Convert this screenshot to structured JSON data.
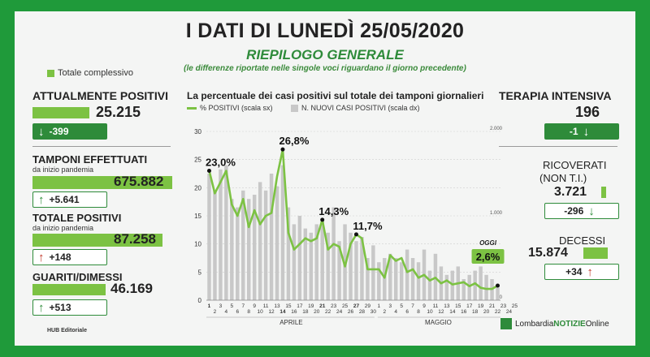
{
  "header": {
    "title": "I DATI DI LUNEDÌ 25/05/2020",
    "subtitle": "RIEPILOGO GENERALE",
    "note": "(le differenze riportate nelle singole voci riguardano il giorno precedente)"
  },
  "legend_total": "Totale complessivo",
  "left": {
    "positivi": {
      "label": "ATTUALMENTE POSITIVI",
      "value": "25.215",
      "delta": "-399"
    },
    "tamponi": {
      "label": "TAMPONI EFFETTUATI",
      "sub": "da inizio pandemia",
      "value": "675.882",
      "delta": "+5.641"
    },
    "totale": {
      "label": "TOTALE POSITIVI",
      "sub": "da inizio pandemia",
      "value": "87.258",
      "delta": "+148"
    },
    "guariti": {
      "label": "GUARITI/DIMESSI",
      "value": "46.169",
      "delta": "+513"
    }
  },
  "right": {
    "terapia": {
      "label": "TERAPIA INTENSIVA",
      "value": "196",
      "delta": "-1"
    },
    "ricoverati": {
      "label1": "RICOVERATI",
      "label2": "(NON T.I.)",
      "value": "3.721",
      "delta": "-296"
    },
    "decessi": {
      "label": "DECESSI",
      "value": "15.874",
      "delta": "+34"
    }
  },
  "footer": {
    "hub": "HUB Editoriale",
    "brand1": "Lombardia ",
    "brand2": "NOTIZIE",
    "brand3": " Online"
  },
  "colors": {
    "green_dark": "#2e8b3a",
    "green_light": "#7cc243",
    "bar_grey": "#c8c8c8",
    "red": "#c0392b"
  },
  "chart_data": {
    "type": "bar+line",
    "title": "La percentuale dei casi positivi sul totale dei tamponi giornalieri",
    "legend": [
      "% POSITIVI (scala sx)",
      "N. NUOVI CASI POSITIVI (scala dx)"
    ],
    "y_left_ticks": [
      "0",
      "5",
      "10",
      "15",
      "20",
      "25",
      "30"
    ],
    "y_left_range": [
      0,
      30
    ],
    "y_right_ticks": [
      "0",
      "1.000",
      "2.000"
    ],
    "y_right_range": [
      0,
      2000
    ],
    "months": [
      "APRILE",
      "MAGGIO"
    ],
    "days_top": [
      "1",
      "3",
      "5",
      "7",
      "9",
      "11",
      "13",
      "15",
      "17",
      "19",
      "21",
      "23",
      "25",
      "27",
      "29",
      "1",
      "3",
      "5",
      "7",
      "9",
      "11",
      "13",
      "15",
      "17",
      "19",
      "21",
      "23",
      "25"
    ],
    "days_bottom": [
      "2",
      "4",
      "6",
      "8",
      "10",
      "12",
      "14",
      "16",
      "18",
      "20",
      "22",
      "24",
      "26",
      "28",
      "30",
      "2",
      "4",
      "6",
      "8",
      "10",
      "12",
      "14",
      "16",
      "18",
      "20",
      "22",
      "24"
    ],
    "bold_days": [
      "1",
      "14",
      "21",
      "27",
      "25"
    ],
    "percent": [
      23.0,
      19,
      21,
      23,
      17,
      15,
      18,
      13,
      16,
      13.5,
      15,
      15.5,
      22,
      26.8,
      12,
      9,
      10,
      11,
      10.5,
      11,
      14.3,
      9,
      10,
      9.5,
      6,
      10,
      11.7,
      11,
      5.5,
      5.5,
      5.5,
      4,
      8,
      7,
      7.5,
      5,
      5.5,
      4,
      4.5,
      3.5,
      4,
      3,
      3.5,
      2.8,
      3,
      3.2,
      2.5,
      3,
      2.2,
      2,
      2,
      2.6
    ],
    "new_cases": [
      1500,
      1300,
      1550,
      1600,
      1200,
      1100,
      1300,
      1200,
      1250,
      1400,
      1300,
      1500,
      1350,
      1600,
      1100,
      900,
      1000,
      850,
      800,
      900,
      950,
      800,
      1100,
      700,
      900,
      800,
      700,
      750,
      500,
      650,
      450,
      500,
      550,
      500,
      450,
      600,
      500,
      450,
      600,
      350,
      550,
      400,
      300,
      350,
      400,
      250,
      300,
      350,
      400,
      300,
      250,
      150
    ],
    "annotations": [
      {
        "index": 0,
        "label": "23,0%"
      },
      {
        "index": 13,
        "label": "26,8%"
      },
      {
        "index": 20,
        "label": "14,3%"
      },
      {
        "index": 26,
        "label": "11,7%"
      },
      {
        "index": 51,
        "label": "2,6%",
        "tag": "OGGI"
      }
    ]
  }
}
